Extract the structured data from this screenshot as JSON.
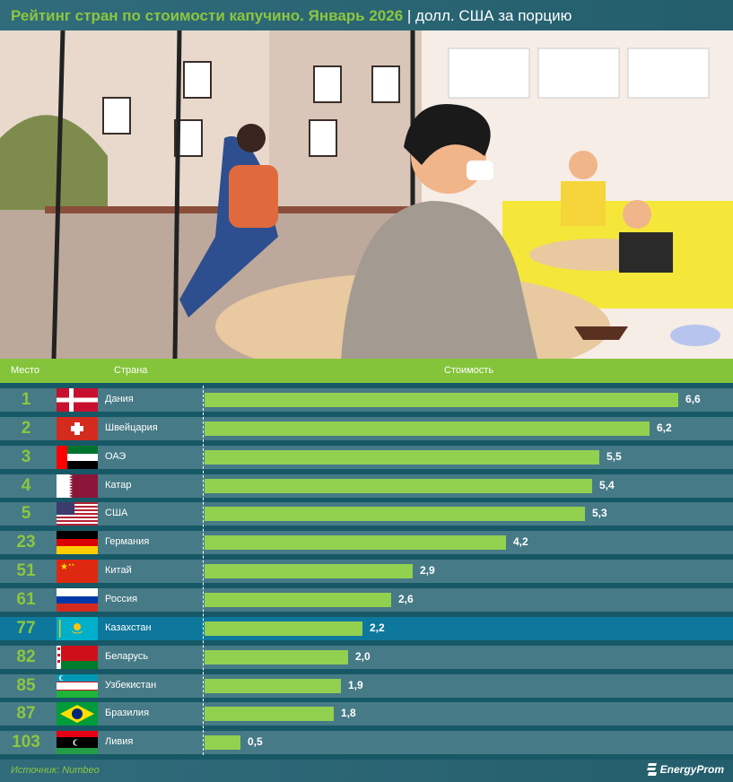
{
  "title": "Рейтинг стран по стоимости капучино. Январь 2026",
  "unit": "| долл. США за порцию",
  "footer": {
    "source": "Источник: Numbeo",
    "logo": "EnergyProm"
  },
  "colors": {
    "accent": "#8cc63f",
    "bar": "#92d050",
    "row": "#467a86",
    "highlight": "#0e779c",
    "background": "#175866"
  },
  "chart_data": {
    "type": "bar",
    "orientation": "horizontal",
    "columns": [
      "Место",
      "Страна",
      "Стоимость"
    ],
    "xlim": [
      0,
      6.6
    ],
    "highlight": "Казахстан",
    "rows": [
      {
        "rank": "1",
        "country": "Дания",
        "flag": "dk",
        "value": 6.6,
        "label": "6,6"
      },
      {
        "rank": "2",
        "country": "Швейцария",
        "flag": "ch",
        "value": 6.2,
        "label": "6,2"
      },
      {
        "rank": "3",
        "country": "ОАЭ",
        "flag": "ae",
        "value": 5.5,
        "label": "5,5"
      },
      {
        "rank": "4",
        "country": "Катар",
        "flag": "qa",
        "value": 5.4,
        "label": "5,4"
      },
      {
        "rank": "5",
        "country": "США",
        "flag": "us",
        "value": 5.3,
        "label": "5,3"
      },
      {
        "rank": "23",
        "country": "Германия",
        "flag": "de",
        "value": 4.2,
        "label": "4,2"
      },
      {
        "rank": "51",
        "country": "Китай",
        "flag": "cn",
        "value": 2.9,
        "label": "2,9"
      },
      {
        "rank": "61",
        "country": "Россия",
        "flag": "ru",
        "value": 2.6,
        "label": "2,6"
      },
      {
        "rank": "77",
        "country": "Казахстан",
        "flag": "kz",
        "value": 2.2,
        "label": "2,2"
      },
      {
        "rank": "82",
        "country": "Беларусь",
        "flag": "by",
        "value": 2.0,
        "label": "2,0"
      },
      {
        "rank": "85",
        "country": "Узбекистан",
        "flag": "uz",
        "value": 1.9,
        "label": "1,9"
      },
      {
        "rank": "87",
        "country": "Бразилия",
        "flag": "br",
        "value": 1.8,
        "label": "1,8"
      },
      {
        "rank": "103",
        "country": "Ливия",
        "flag": "ly",
        "value": 0.5,
        "label": "0,5"
      }
    ]
  }
}
